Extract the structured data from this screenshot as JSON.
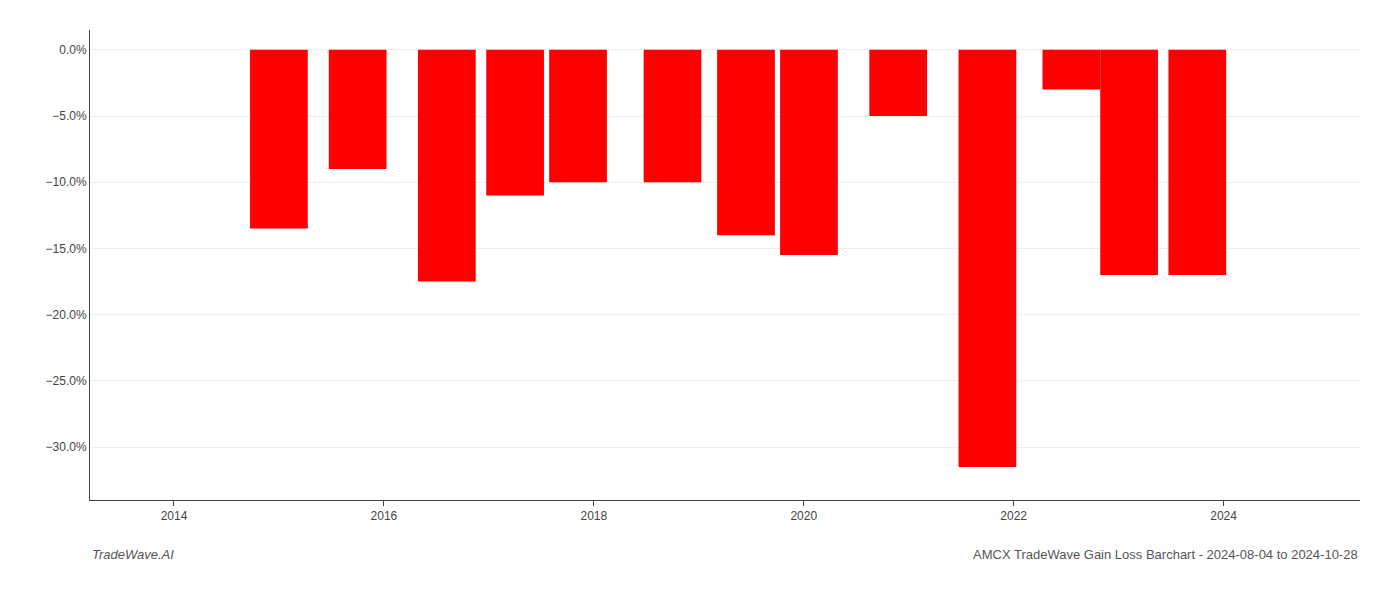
{
  "chart_data": {
    "type": "bar",
    "title": "AMCX TradeWave Gain Loss Barchart - 2024-08-04 to 2024-10-28",
    "annotations": [
      "TradeWave.AI"
    ],
    "x": [
      2015.0,
      2015.75,
      2016.6,
      2017.25,
      2017.85,
      2018.75,
      2019.45,
      2020.05,
      2020.9,
      2021.75,
      2022.55,
      2023.1,
      2023.75
    ],
    "values": [
      -13.5,
      -9.0,
      -17.5,
      -11.0,
      -10.0,
      -10.0,
      -14.0,
      -15.5,
      -5.0,
      -31.5,
      -3.0,
      -17.0,
      -17.0
    ],
    "color": "#ff0000",
    "xlim": [
      2013.2,
      2025.3
    ],
    "xticks": [
      2014,
      2016,
      2018,
      2020,
      2022,
      2024
    ],
    "ylim": [
      -34,
      1.5
    ],
    "yticks": [
      {
        "value": 0.0,
        "label": "0.0%"
      },
      {
        "value": -5.0,
        "label": "−5.0%"
      },
      {
        "value": -10.0,
        "label": "−10.0%"
      },
      {
        "value": -15.0,
        "label": "−15.0%"
      },
      {
        "value": -20.0,
        "label": "−20.0%"
      },
      {
        "value": -25.0,
        "label": "−25.0%"
      },
      {
        "value": -30.0,
        "label": "−30.0%"
      }
    ],
    "grid": true
  }
}
